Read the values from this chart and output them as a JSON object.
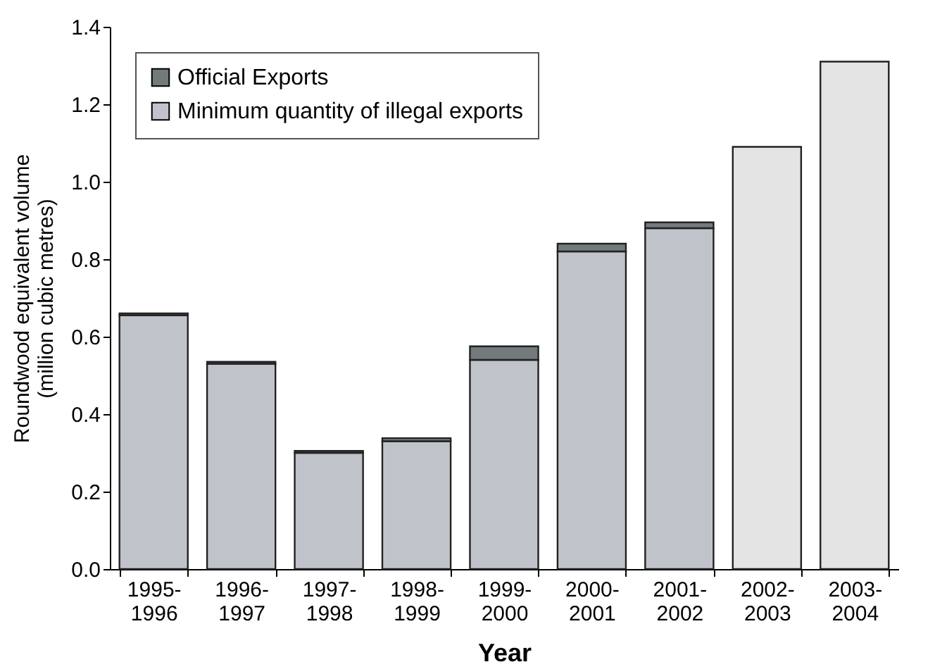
{
  "chart_data": {
    "type": "bar",
    "stacked": true,
    "xlabel": "Year",
    "ylabel": "Roundwood equivalent volume (million cubic metres)",
    "categories": [
      "1995-1996",
      "1996-1997",
      "1997-1998",
      "1998-1999",
      "1999-2000",
      "2000-2001",
      "2001-2002",
      "2002-2003",
      "2003-2004"
    ],
    "series": [
      {
        "name": "Minimum quantity of illegal exports",
        "color": "#c0c4ca",
        "values": [
          0.655,
          0.53,
          0.3,
          0.33,
          0.54,
          0.82,
          0.88,
          null,
          null
        ]
      },
      {
        "name": "Official Exports",
        "color": "#737a7c",
        "values": [
          0.005,
          0.005,
          0.005,
          0.008,
          0.035,
          0.02,
          0.015,
          null,
          null
        ]
      },
      {
        "color": "#e4e4e4",
        "values": [
          null,
          null,
          null,
          null,
          null,
          null,
          null,
          1.09,
          1.31
        ]
      }
    ],
    "ylim": [
      0,
      1.4
    ],
    "yticks": [
      {
        "value": 0,
        "label": "0.0"
      },
      0.2,
      0.4,
      0.6,
      0.8,
      {
        "value": 1,
        "label": "1.0"
      },
      1.2,
      1.4
    ],
    "grid": false,
    "legend": "top left"
  }
}
